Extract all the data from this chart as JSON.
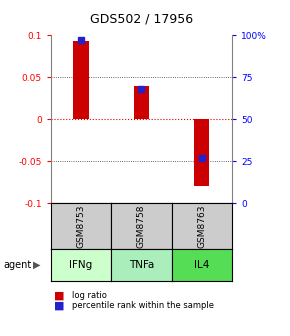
{
  "title": "GDS502 / 17956",
  "categories": [
    "IFNg",
    "TNFa",
    "IL4"
  ],
  "gsm_labels": [
    "GSM8753",
    "GSM8758",
    "GSM8763"
  ],
  "log_ratios": [
    0.093,
    0.04,
    -0.08
  ],
  "percentile_ranks": [
    97.0,
    68.0,
    27.0
  ],
  "ylim_left": [
    -0.1,
    0.1
  ],
  "ylim_right": [
    0,
    100
  ],
  "yticks_left": [
    -0.1,
    -0.05,
    0,
    0.05,
    0.1
  ],
  "yticks_right": [
    0,
    25,
    50,
    75,
    100
  ],
  "bar_color": "#cc0000",
  "point_color": "#2222cc",
  "hline_color": "#cc0000",
  "dotline_color": "#333333",
  "gray_color": "#cccccc",
  "green_colors": [
    "#ccffcc",
    "#aaeebb",
    "#55dd55"
  ],
  "agent_label": "agent",
  "legend_log": "log ratio",
  "legend_pct": "percentile rank within the sample",
  "bar_width": 0.25
}
